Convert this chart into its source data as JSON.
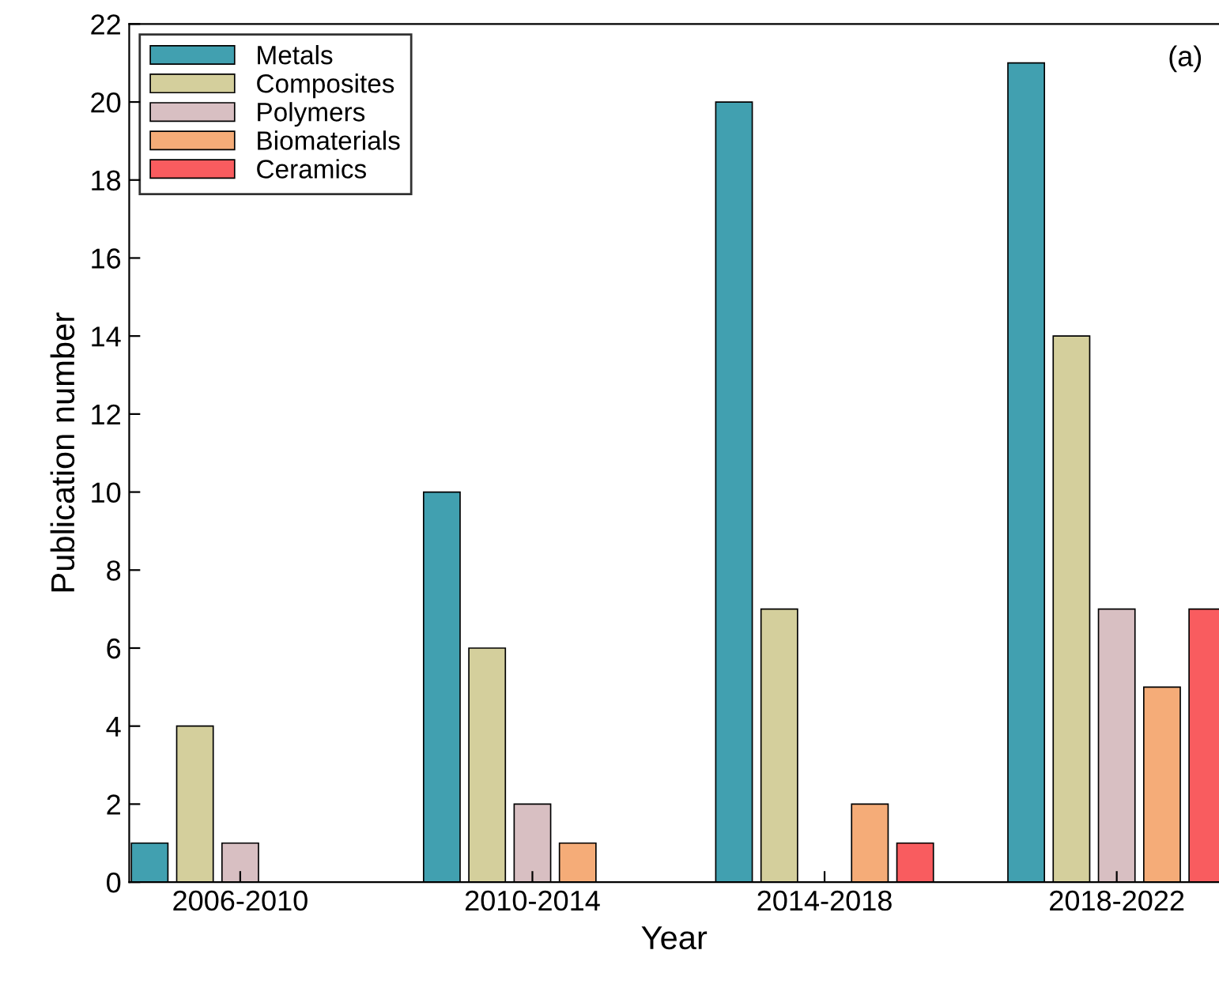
{
  "chart_data": {
    "type": "bar",
    "xlabel": "Year",
    "ylabel": "Publication number",
    "categories": [
      "2006-2010",
      "2010-2014",
      "2014-2018",
      "2018-2022"
    ],
    "series": [
      {
        "name": "Metals",
        "color": "#41a0b0",
        "values": [
          1,
          10,
          20,
          21
        ]
      },
      {
        "name": "Composites",
        "color": "#d4cf9c",
        "values": [
          4,
          6,
          7,
          14
        ]
      },
      {
        "name": "Polymers",
        "color": "#d8bfc2",
        "values": [
          1,
          2,
          0,
          7
        ]
      },
      {
        "name": "Biomaterials",
        "color": "#f5ac78",
        "values": [
          0,
          1,
          2,
          5
        ]
      },
      {
        "name": "Ceramics",
        "color": "#f95c5f",
        "values": [
          0,
          0,
          1,
          7
        ]
      }
    ],
    "ylim": [
      0,
      22
    ],
    "yticks": [
      0,
      2,
      4,
      6,
      8,
      10,
      12,
      14,
      16,
      18,
      20,
      22
    ],
    "legend": "top left",
    "grid": false,
    "annotations": [
      "(a)"
    ]
  }
}
